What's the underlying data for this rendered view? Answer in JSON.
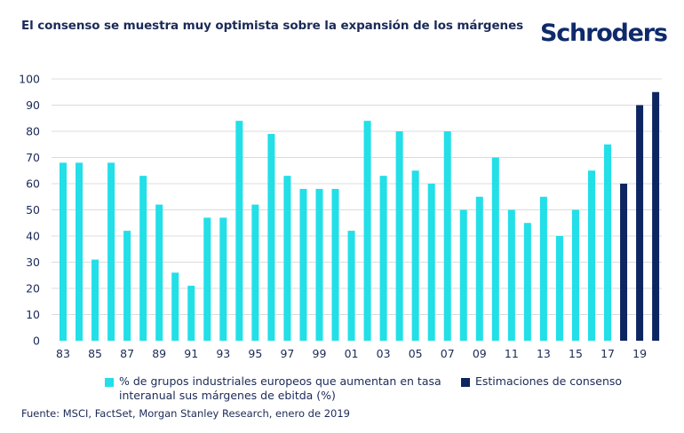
{
  "title": "El consenso se muestra muy optimista sobre la expansión de los márgenes",
  "logo": "Schroders",
  "source": "Fuente: MSCI, FactSet, Morgan Stanley Research, enero de 2019",
  "colors": {
    "series1": "#22dfe8",
    "series2": "#0d2560",
    "grid": "#dcdcdc",
    "text": "#1b2a57"
  },
  "chart_data": {
    "type": "bar",
    "ylim": [
      0,
      100
    ],
    "yticks": [
      0,
      10,
      20,
      30,
      40,
      50,
      60,
      70,
      80,
      90,
      100
    ],
    "categories": [
      "83",
      "84",
      "85",
      "86",
      "87",
      "88",
      "89",
      "90",
      "91",
      "92",
      "93",
      "94",
      "95",
      "96",
      "97",
      "98",
      "99",
      "00",
      "01",
      "02",
      "03",
      "04",
      "05",
      "06",
      "07",
      "08",
      "09",
      "10",
      "11",
      "12",
      "13",
      "14",
      "15",
      "16",
      "17",
      "18",
      "19",
      "20"
    ],
    "xtick_labels": [
      "83",
      "85",
      "87",
      "89",
      "91",
      "93",
      "95",
      "97",
      "99",
      "01",
      "03",
      "05",
      "07",
      "09",
      "11",
      "13",
      "15",
      "17",
      "19"
    ],
    "series": [
      {
        "name": "% de grupos industriales europeos que aumentan en tasa interanual sus márgenes de ebitda (%)",
        "values": [
          68,
          68,
          31,
          68,
          42,
          63,
          52,
          26,
          21,
          47,
          47,
          84,
          52,
          79,
          63,
          58,
          58,
          58,
          42,
          84,
          63,
          80,
          65,
          60,
          80,
          50,
          55,
          70,
          50,
          45,
          55,
          40,
          50,
          65,
          75,
          null,
          null,
          null
        ]
      },
      {
        "name": "Estimaciones de consenso",
        "values": [
          null,
          null,
          null,
          null,
          null,
          null,
          null,
          null,
          null,
          null,
          null,
          null,
          null,
          null,
          null,
          null,
          null,
          null,
          null,
          null,
          null,
          null,
          null,
          null,
          null,
          null,
          null,
          null,
          null,
          null,
          null,
          null,
          null,
          null,
          null,
          60,
          90,
          95
        ]
      }
    ],
    "legend": [
      {
        "label_line1": "% de grupos industriales europeos que aumentan en tasa",
        "label_line2": "interanual sus márgenes de ebitda (%)"
      },
      {
        "label_line1": "Estimaciones de consenso"
      }
    ],
    "legend_position": "bottom",
    "grid": true
  }
}
